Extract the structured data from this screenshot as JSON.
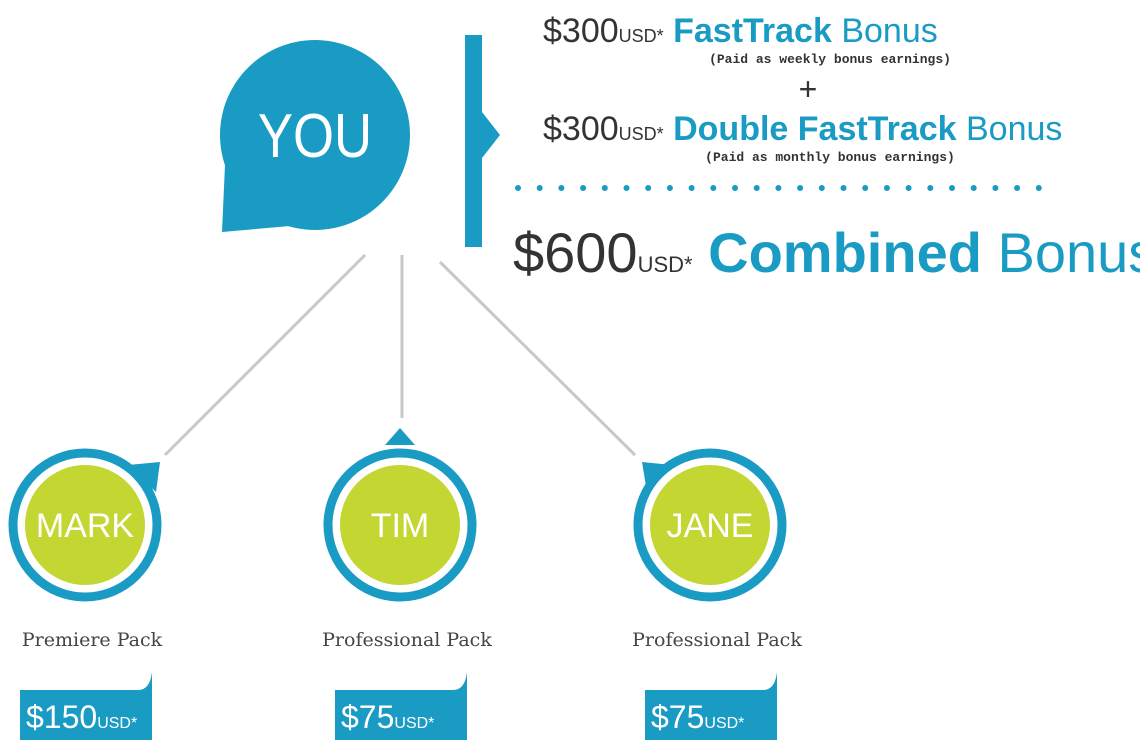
{
  "center": {
    "label": "YOU"
  },
  "bonuses": [
    {
      "amount": "$300",
      "unit": "USD*",
      "name": "FastTrack",
      "suffix": "Bonus",
      "note": "(Paid as weekly bonus earnings)"
    },
    {
      "amount": "$300",
      "unit": "USD*",
      "name": "Double FastTrack",
      "suffix": "Bonus",
      "note": "(Paid as monthly bonus earnings)"
    }
  ],
  "plus": "+",
  "total": {
    "amount": "$600",
    "unit": "USD*",
    "name": "Combined",
    "suffix": "Bonus"
  },
  "members": [
    {
      "name": "MARK",
      "pack": "Premiere Pack",
      "price": "$150",
      "unit": "USD*"
    },
    {
      "name": "TIM",
      "pack": "Professional Pack",
      "price": "$75",
      "unit": "USD*"
    },
    {
      "name": "JANE",
      "pack": "Professional Pack",
      "price": "$75",
      "unit": "USD*"
    }
  ]
}
